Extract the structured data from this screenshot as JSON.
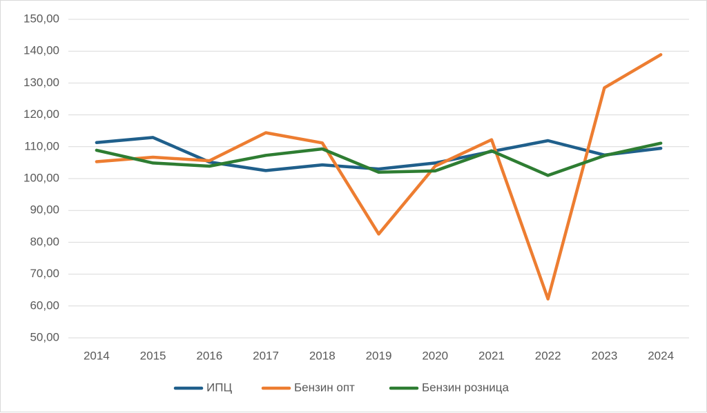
{
  "chart_data": {
    "type": "line",
    "title": "",
    "xlabel": "",
    "ylabel": "",
    "categories": [
      "2014",
      "2015",
      "2016",
      "2017",
      "2018",
      "2019",
      "2020",
      "2021",
      "2022",
      "2023",
      "2024"
    ],
    "ylim": [
      50,
      150
    ],
    "yticks": [
      50,
      60,
      70,
      80,
      90,
      100,
      110,
      120,
      130,
      140,
      150
    ],
    "ytick_labels": [
      "50,00",
      "60,00",
      "70,00",
      "80,00",
      "90,00",
      "100,00",
      "110,00",
      "120,00",
      "130,00",
      "140,00",
      "150,00"
    ],
    "grid": true,
    "legend_position": "bottom",
    "series": [
      {
        "name": "ИПЦ",
        "color": "#1f5f8b",
        "values": [
          111.3,
          112.9,
          105.2,
          102.5,
          104.3,
          103.0,
          104.9,
          108.5,
          111.9,
          107.4,
          109.5
        ]
      },
      {
        "name": "Бензин опт",
        "color": "#ed7d31",
        "values": [
          105.3,
          106.7,
          105.6,
          114.4,
          111.2,
          82.6,
          103.9,
          112.2,
          62.2,
          128.5,
          138.9
        ]
      },
      {
        "name": "Бензин розница",
        "color": "#2e7d32",
        "values": [
          108.9,
          104.9,
          103.9,
          107.3,
          109.3,
          102.0,
          102.4,
          108.7,
          101.0,
          107.2,
          111.1
        ]
      }
    ]
  }
}
